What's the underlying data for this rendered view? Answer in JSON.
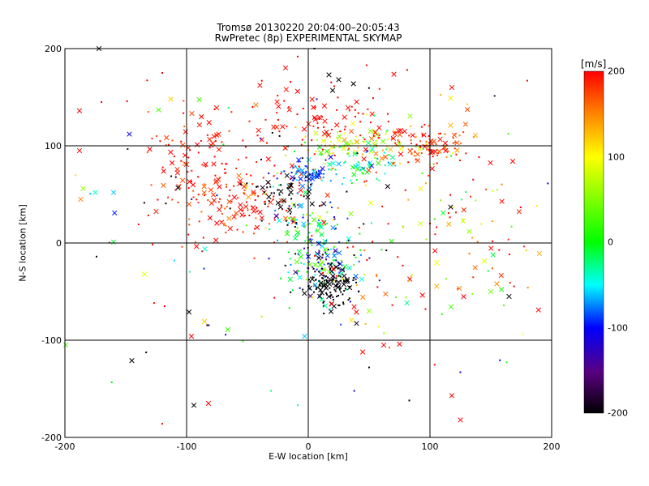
{
  "chart_data": {
    "type": "scatter",
    "title": "Tromsø 20130220 20:04:00–20:05:43",
    "subtitle": "RwPretec (8p) EXPERIMENTAL SKYMAP",
    "xlabel": "E-W location [km]",
    "ylabel": "N-S location [km]",
    "xlim": [
      -200,
      200
    ],
    "ylim": [
      -200,
      200
    ],
    "x_ticks": [
      "-200",
      "-100",
      "0",
      "100",
      "200"
    ],
    "y_ticks": [
      "-200",
      "-100",
      "0",
      "100",
      "200"
    ],
    "grid": true,
    "colorbar": {
      "label": "[m/s]",
      "range": [
        -200,
        200
      ],
      "ticks": [
        "-200",
        "-100",
        "0",
        "100",
        "200"
      ],
      "colormap": "rainbow (black-purple-blue-cyan-green-yellow-red)"
    },
    "markers": [
      "cross",
      "dot"
    ],
    "clusters": [
      {
        "x": -55,
        "y": 45,
        "sx": 35,
        "sy": 22,
        "n": 170,
        "v": 190,
        "sv": 20
      },
      {
        "x": -90,
        "y": 100,
        "sx": 25,
        "sy": 25,
        "n": 70,
        "v": 190,
        "sv": 15
      },
      {
        "x": 95,
        "y": 100,
        "sx": 22,
        "sy": 12,
        "n": 100,
        "v": 180,
        "sv": 25
      },
      {
        "x": 40,
        "y": 100,
        "sx": 25,
        "sy": 10,
        "n": 90,
        "v": 80,
        "sv": 40
      },
      {
        "x": 45,
        "y": 80,
        "sx": 20,
        "sy": 10,
        "n": 60,
        "v": -40,
        "sv": 40
      },
      {
        "x": 0,
        "y": 70,
        "sx": 10,
        "sy": 6,
        "n": 60,
        "v": -90,
        "sv": 25
      },
      {
        "x": 15,
        "y": -20,
        "sx": 15,
        "sy": 22,
        "n": 150,
        "v": -60,
        "sv": 90
      },
      {
        "x": 18,
        "y": -42,
        "sx": 10,
        "sy": 10,
        "n": 110,
        "v": -200,
        "sv": 5
      },
      {
        "x": 0,
        "y": 20,
        "sx": 14,
        "sy": 18,
        "n": 70,
        "v": -30,
        "sv": 60
      },
      {
        "x": 10,
        "y": 130,
        "sx": 30,
        "sy": 25,
        "n": 90,
        "v": 200,
        "sv": 10
      },
      {
        "x": 130,
        "y": 20,
        "sx": 40,
        "sy": 50,
        "n": 70,
        "v": 150,
        "sv": 70
      },
      {
        "x": 60,
        "y": -40,
        "sx": 40,
        "sy": 30,
        "n": 40,
        "v": 130,
        "sv": 80
      },
      {
        "x": -20,
        "y": 50,
        "sx": 15,
        "sy": 15,
        "n": 50,
        "v": -200,
        "sv": 5
      },
      {
        "x": 0,
        "y": 0,
        "sx": 120,
        "sy": 90,
        "n": 120,
        "v": 0,
        "sv": 200
      }
    ],
    "points": [
      {
        "x": -172,
        "y": 200,
        "v": -200,
        "m": "cross"
      },
      {
        "x": 5,
        "y": 200,
        "v": -200,
        "m": "dot"
      },
      {
        "x": 17,
        "y": 173,
        "v": -200,
        "m": "cross"
      },
      {
        "x": 20,
        "y": 157,
        "v": -200,
        "m": "cross"
      },
      {
        "x": 25,
        "y": 168,
        "v": -200,
        "m": "cross"
      },
      {
        "x": -145,
        "y": -121,
        "v": -200,
        "m": "cross"
      },
      {
        "x": -98,
        "y": -71,
        "v": -200,
        "m": "cross"
      },
      {
        "x": -94,
        "y": -167,
        "v": -200,
        "m": "cross"
      },
      {
        "x": 118,
        "y": -157,
        "v": 200,
        "m": "cross"
      },
      {
        "x": 125,
        "y": -182,
        "v": 200,
        "m": "cross"
      },
      {
        "x": -82,
        "y": -165,
        "v": 200,
        "m": "cross"
      },
      {
        "x": -96,
        "y": -96,
        "v": 200,
        "m": "cross"
      },
      {
        "x": 75,
        "y": -104,
        "v": 200,
        "m": "cross"
      },
      {
        "x": 62,
        "y": -105,
        "v": 200,
        "m": "cross"
      },
      {
        "x": 118,
        "y": 160,
        "v": 200,
        "m": "cross"
      },
      {
        "x": 168,
        "y": 84,
        "v": 200,
        "m": "cross"
      },
      {
        "x": 180,
        "y": 167,
        "v": 200,
        "m": "dot"
      },
      {
        "x": -188,
        "y": 136,
        "v": 200,
        "m": "cross"
      },
      {
        "x": -188,
        "y": 95,
        "v": 200,
        "m": "cross"
      },
      {
        "x": -187,
        "y": 45,
        "v": 150,
        "m": "cross"
      },
      {
        "x": -185,
        "y": 56,
        "v": 60,
        "m": "cross"
      },
      {
        "x": -175,
        "y": 52,
        "v": -40,
        "m": "cross"
      },
      {
        "x": -160,
        "y": 1,
        "v": -10,
        "m": "cross"
      },
      {
        "x": -147,
        "y": 112,
        "v": -110,
        "m": "cross"
      },
      {
        "x": -160,
        "y": 52,
        "v": -60,
        "m": "cross"
      },
      {
        "x": -123,
        "y": 137,
        "v": 30,
        "m": "cross"
      },
      {
        "x": -113,
        "y": 148,
        "v": 120,
        "m": "cross"
      },
      {
        "x": 117,
        "y": 121,
        "v": 130,
        "m": "cross"
      },
      {
        "x": 117,
        "y": 149,
        "v": 110,
        "m": "cross"
      },
      {
        "x": 150,
        "y": -50,
        "v": 40,
        "m": "cross"
      },
      {
        "x": 155,
        "y": -42,
        "v": 150,
        "m": "cross"
      },
      {
        "x": 165,
        "y": -55,
        "v": -200,
        "m": "cross"
      },
      {
        "x": 117,
        "y": 37,
        "v": -200,
        "m": "cross"
      },
      {
        "x": 50,
        "y": -70,
        "v": 60,
        "m": "cross"
      },
      {
        "x": 35,
        "y": 30,
        "v": 50,
        "m": "cross"
      },
      {
        "x": 100,
        "y": 20,
        "v": 200,
        "m": "dot"
      },
      {
        "x": -110,
        "y": -18,
        "v": -60,
        "m": "dot"
      },
      {
        "x": -120,
        "y": 175,
        "v": 200,
        "m": "dot"
      },
      {
        "x": -170,
        "y": 145,
        "v": 200,
        "m": "dot"
      },
      {
        "x": -174,
        "y": -14,
        "v": -200,
        "m": "dot"
      },
      {
        "x": -120,
        "y": -186,
        "v": 200,
        "m": "dot"
      },
      {
        "x": -118,
        "y": -65,
        "v": 200,
        "m": "dot"
      },
      {
        "x": 125,
        "y": -133,
        "v": -110,
        "m": "dot"
      },
      {
        "x": 83,
        "y": -162,
        "v": -200,
        "m": "dot"
      },
      {
        "x": 50,
        "y": -128,
        "v": -200,
        "m": "dot"
      },
      {
        "x": -3,
        "y": -96,
        "v": -60,
        "m": "cross"
      }
    ]
  }
}
